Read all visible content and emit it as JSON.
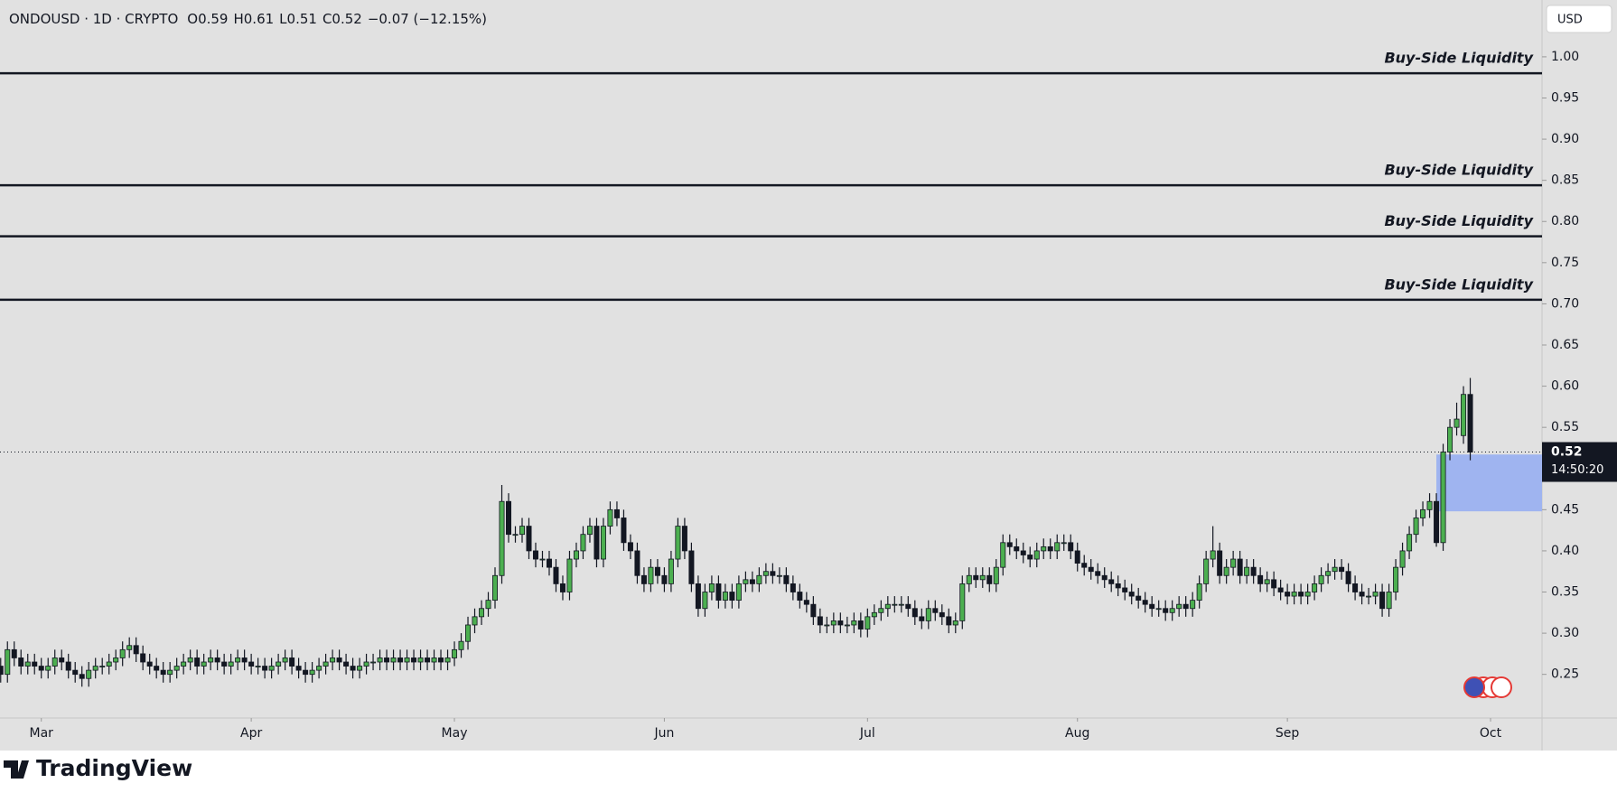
{
  "chart_data": {
    "type": "candlestick",
    "title": "ONDOUSD · 1D · CRYPTO",
    "legend_values": [
      "O0.59",
      "H0.61",
      "L0.51",
      "C0.52",
      "−0.07 (−12.15%)"
    ],
    "currency": "USD",
    "up_color": "#4caf50",
    "down_color": "#131722",
    "open": [
      0.26,
      0.25,
      0.28,
      0.27,
      0.26,
      0.265,
      0.26,
      0.255,
      0.26,
      0.27,
      0.265,
      0.255,
      0.25,
      0.245,
      0.255,
      0.26,
      0.26,
      0.265,
      0.27,
      0.28,
      0.285,
      0.275,
      0.265,
      0.26,
      0.255,
      0.25,
      0.255,
      0.26,
      0.265,
      0.27,
      0.26,
      0.265,
      0.27,
      0.265,
      0.26,
      0.265,
      0.27,
      0.265,
      0.26,
      0.26,
      0.255,
      0.26,
      0.265,
      0.27,
      0.26,
      0.255,
      0.25,
      0.255,
      0.26,
      0.265,
      0.27,
      0.265,
      0.26,
      0.255,
      0.26,
      0.265,
      0.265,
      0.27,
      0.265,
      0.27,
      0.265,
      0.27,
      0.265,
      0.27,
      0.265,
      0.27,
      0.265,
      0.27,
      0.28,
      0.29,
      0.31,
      0.32,
      0.33,
      0.34,
      0.37,
      0.46,
      0.42,
      0.42,
      0.43,
      0.4,
      0.39,
      0.39,
      0.38,
      0.36,
      0.35,
      0.39,
      0.4,
      0.42,
      0.43,
      0.39,
      0.43,
      0.45,
      0.44,
      0.41,
      0.4,
      0.37,
      0.36,
      0.38,
      0.37,
      0.36,
      0.39,
      0.43,
      0.4,
      0.36,
      0.33,
      0.35,
      0.36,
      0.34,
      0.35,
      0.34,
      0.36,
      0.365,
      0.36,
      0.37,
      0.375,
      0.37,
      0.37,
      0.36,
      0.35,
      0.34,
      0.335,
      0.32,
      0.31,
      0.31,
      0.315,
      0.31,
      0.31,
      0.315,
      0.305,
      0.32,
      0.325,
      0.33,
      0.335,
      0.335,
      0.335,
      0.33,
      0.32,
      0.315,
      0.33,
      0.325,
      0.32,
      0.31,
      0.315,
      0.36,
      0.37,
      0.365,
      0.37,
      0.36,
      0.38,
      0.41,
      0.405,
      0.4,
      0.395,
      0.39,
      0.4,
      0.405,
      0.4,
      0.41,
      0.41,
      0.4,
      0.385,
      0.38,
      0.375,
      0.37,
      0.365,
      0.36,
      0.355,
      0.35,
      0.345,
      0.34,
      0.335,
      0.33,
      0.33,
      0.325,
      0.33,
      0.335,
      0.33,
      0.34,
      0.36,
      0.39,
      0.4,
      0.37,
      0.38,
      0.39,
      0.37,
      0.38,
      0.37,
      0.36,
      0.365,
      0.355,
      0.35,
      0.345,
      0.35,
      0.345,
      0.35,
      0.36,
      0.37,
      0.375,
      0.38,
      0.375,
      0.36,
      0.35,
      0.345,
      0.345,
      0.35,
      0.33,
      0.35,
      0.38,
      0.4,
      0.42,
      0.44,
      0.45,
      0.46,
      0.41,
      0.52,
      0.55,
      0.54,
      0.59
    ],
    "high": [
      0.27,
      0.29,
      0.29,
      0.28,
      0.275,
      0.275,
      0.27,
      0.27,
      0.28,
      0.28,
      0.275,
      0.265,
      0.26,
      0.265,
      0.27,
      0.27,
      0.275,
      0.28,
      0.29,
      0.295,
      0.295,
      0.285,
      0.275,
      0.27,
      0.265,
      0.265,
      0.27,
      0.275,
      0.28,
      0.28,
      0.275,
      0.28,
      0.28,
      0.275,
      0.275,
      0.28,
      0.28,
      0.275,
      0.27,
      0.27,
      0.27,
      0.275,
      0.28,
      0.28,
      0.27,
      0.265,
      0.265,
      0.27,
      0.275,
      0.28,
      0.28,
      0.275,
      0.27,
      0.27,
      0.275,
      0.275,
      0.28,
      0.28,
      0.28,
      0.28,
      0.28,
      0.28,
      0.28,
      0.28,
      0.28,
      0.28,
      0.28,
      0.29,
      0.3,
      0.32,
      0.33,
      0.34,
      0.35,
      0.38,
      0.48,
      0.47,
      0.43,
      0.44,
      0.44,
      0.41,
      0.4,
      0.4,
      0.39,
      0.37,
      0.4,
      0.41,
      0.43,
      0.44,
      0.44,
      0.44,
      0.46,
      0.46,
      0.45,
      0.42,
      0.41,
      0.38,
      0.39,
      0.39,
      0.38,
      0.4,
      0.44,
      0.44,
      0.41,
      0.37,
      0.36,
      0.37,
      0.37,
      0.36,
      0.36,
      0.37,
      0.375,
      0.375,
      0.38,
      0.385,
      0.385,
      0.38,
      0.38,
      0.37,
      0.36,
      0.35,
      0.345,
      0.33,
      0.32,
      0.325,
      0.325,
      0.32,
      0.325,
      0.325,
      0.33,
      0.335,
      0.34,
      0.345,
      0.345,
      0.345,
      0.345,
      0.34,
      0.33,
      0.34,
      0.34,
      0.335,
      0.33,
      0.325,
      0.37,
      0.38,
      0.38,
      0.38,
      0.38,
      0.39,
      0.42,
      0.42,
      0.415,
      0.41,
      0.405,
      0.41,
      0.415,
      0.415,
      0.42,
      0.42,
      0.42,
      0.41,
      0.395,
      0.39,
      0.385,
      0.38,
      0.375,
      0.37,
      0.365,
      0.36,
      0.355,
      0.35,
      0.345,
      0.34,
      0.34,
      0.34,
      0.345,
      0.345,
      0.35,
      0.37,
      0.4,
      0.43,
      0.41,
      0.39,
      0.4,
      0.4,
      0.39,
      0.39,
      0.38,
      0.375,
      0.375,
      0.365,
      0.36,
      0.36,
      0.36,
      0.36,
      0.37,
      0.38,
      0.385,
      0.39,
      0.39,
      0.385,
      0.37,
      0.36,
      0.355,
      0.36,
      0.36,
      0.36,
      0.39,
      0.41,
      0.43,
      0.45,
      0.46,
      0.47,
      0.47,
      0.53,
      0.56,
      0.58,
      0.6,
      0.61
    ],
    "low": [
      0.24,
      0.24,
      0.26,
      0.25,
      0.25,
      0.25,
      0.245,
      0.245,
      0.25,
      0.255,
      0.245,
      0.24,
      0.235,
      0.235,
      0.245,
      0.25,
      0.25,
      0.255,
      0.26,
      0.27,
      0.265,
      0.255,
      0.25,
      0.245,
      0.24,
      0.24,
      0.245,
      0.25,
      0.255,
      0.25,
      0.25,
      0.255,
      0.255,
      0.25,
      0.25,
      0.255,
      0.255,
      0.25,
      0.25,
      0.245,
      0.245,
      0.25,
      0.255,
      0.25,
      0.245,
      0.24,
      0.24,
      0.245,
      0.25,
      0.255,
      0.255,
      0.25,
      0.245,
      0.245,
      0.25,
      0.255,
      0.255,
      0.255,
      0.255,
      0.255,
      0.255,
      0.255,
      0.255,
      0.255,
      0.255,
      0.255,
      0.255,
      0.26,
      0.27,
      0.28,
      0.3,
      0.31,
      0.32,
      0.33,
      0.36,
      0.41,
      0.41,
      0.41,
      0.39,
      0.38,
      0.38,
      0.37,
      0.35,
      0.34,
      0.34,
      0.38,
      0.39,
      0.41,
      0.38,
      0.38,
      0.42,
      0.43,
      0.4,
      0.39,
      0.36,
      0.35,
      0.35,
      0.36,
      0.35,
      0.35,
      0.38,
      0.39,
      0.35,
      0.32,
      0.32,
      0.34,
      0.33,
      0.33,
      0.33,
      0.33,
      0.35,
      0.35,
      0.35,
      0.36,
      0.36,
      0.36,
      0.35,
      0.34,
      0.33,
      0.325,
      0.31,
      0.3,
      0.3,
      0.3,
      0.3,
      0.3,
      0.3,
      0.295,
      0.295,
      0.31,
      0.315,
      0.32,
      0.325,
      0.325,
      0.32,
      0.31,
      0.305,
      0.305,
      0.315,
      0.31,
      0.3,
      0.3,
      0.305,
      0.35,
      0.355,
      0.355,
      0.35,
      0.35,
      0.37,
      0.395,
      0.39,
      0.385,
      0.38,
      0.38,
      0.39,
      0.39,
      0.39,
      0.4,
      0.39,
      0.375,
      0.37,
      0.365,
      0.36,
      0.355,
      0.35,
      0.345,
      0.34,
      0.335,
      0.33,
      0.325,
      0.32,
      0.32,
      0.315,
      0.315,
      0.32,
      0.32,
      0.32,
      0.33,
      0.35,
      0.38,
      0.36,
      0.36,
      0.37,
      0.36,
      0.36,
      0.36,
      0.35,
      0.35,
      0.345,
      0.34,
      0.335,
      0.335,
      0.335,
      0.335,
      0.34,
      0.35,
      0.36,
      0.365,
      0.365,
      0.35,
      0.34,
      0.335,
      0.335,
      0.335,
      0.32,
      0.32,
      0.34,
      0.37,
      0.39,
      0.41,
      0.43,
      0.44,
      0.405,
      0.4,
      0.51,
      0.54,
      0.53,
      0.51
    ],
    "close": [
      0.25,
      0.28,
      0.27,
      0.26,
      0.265,
      0.26,
      0.255,
      0.26,
      0.27,
      0.265,
      0.255,
      0.25,
      0.245,
      0.255,
      0.26,
      0.26,
      0.265,
      0.27,
      0.28,
      0.285,
      0.275,
      0.265,
      0.26,
      0.255,
      0.25,
      0.255,
      0.26,
      0.265,
      0.27,
      0.26,
      0.265,
      0.27,
      0.265,
      0.26,
      0.265,
      0.27,
      0.265,
      0.26,
      0.26,
      0.255,
      0.26,
      0.265,
      0.27,
      0.26,
      0.255,
      0.25,
      0.255,
      0.26,
      0.265,
      0.27,
      0.265,
      0.26,
      0.255,
      0.26,
      0.265,
      0.265,
      0.27,
      0.265,
      0.27,
      0.265,
      0.27,
      0.265,
      0.27,
      0.265,
      0.27,
      0.265,
      0.27,
      0.28,
      0.29,
      0.31,
      0.32,
      0.33,
      0.34,
      0.37,
      0.46,
      0.42,
      0.42,
      0.43,
      0.4,
      0.39,
      0.39,
      0.38,
      0.36,
      0.35,
      0.39,
      0.4,
      0.42,
      0.43,
      0.39,
      0.43,
      0.45,
      0.44,
      0.41,
      0.4,
      0.37,
      0.36,
      0.38,
      0.37,
      0.36,
      0.39,
      0.43,
      0.4,
      0.36,
      0.33,
      0.35,
      0.36,
      0.34,
      0.35,
      0.34,
      0.36,
      0.365,
      0.36,
      0.37,
      0.375,
      0.37,
      0.37,
      0.36,
      0.35,
      0.34,
      0.335,
      0.32,
      0.31,
      0.31,
      0.315,
      0.31,
      0.31,
      0.315,
      0.305,
      0.32,
      0.325,
      0.33,
      0.335,
      0.335,
      0.335,
      0.33,
      0.32,
      0.315,
      0.33,
      0.325,
      0.32,
      0.31,
      0.315,
      0.36,
      0.37,
      0.365,
      0.37,
      0.36,
      0.38,
      0.41,
      0.405,
      0.4,
      0.395,
      0.39,
      0.4,
      0.405,
      0.4,
      0.41,
      0.41,
      0.4,
      0.385,
      0.38,
      0.375,
      0.37,
      0.365,
      0.36,
      0.355,
      0.35,
      0.345,
      0.34,
      0.335,
      0.33,
      0.33,
      0.325,
      0.33,
      0.335,
      0.33,
      0.34,
      0.36,
      0.39,
      0.4,
      0.37,
      0.38,
      0.39,
      0.37,
      0.38,
      0.37,
      0.36,
      0.365,
      0.355,
      0.35,
      0.345,
      0.35,
      0.345,
      0.35,
      0.36,
      0.37,
      0.375,
      0.38,
      0.375,
      0.36,
      0.35,
      0.345,
      0.345,
      0.35,
      0.33,
      0.35,
      0.38,
      0.4,
      0.42,
      0.44,
      0.45,
      0.46,
      0.41,
      0.52,
      0.55,
      0.56,
      0.59,
      0.52
    ],
    "xlim": [
      -0.1,
      227.6
    ],
    "xticks": [
      {
        "value": 6,
        "label": "Mar"
      },
      {
        "value": 37,
        "label": "Apr"
      },
      {
        "value": 67,
        "label": "May"
      },
      {
        "value": 98,
        "label": "Jun"
      },
      {
        "value": 128,
        "label": "Jul"
      },
      {
        "value": 159,
        "label": "Aug"
      },
      {
        "value": 190,
        "label": "Sep"
      },
      {
        "value": 220,
        "label": "Oct"
      }
    ],
    "ylim": [
      0.197,
      1.069
    ],
    "yticks": [
      0.25,
      {
        "value": 0.3,
        "label": "0.30"
      },
      0.35,
      {
        "value": 0.4,
        "label": "0.40"
      },
      0.45,
      {
        "value": 0.5,
        "label": "0.50"
      },
      0.55,
      {
        "value": 0.6,
        "label": "0.60"
      },
      0.65,
      {
        "value": 0.7,
        "label": "0.70"
      },
      0.75,
      {
        "value": 0.8,
        "label": "0.80"
      },
      0.85,
      {
        "value": 0.9,
        "label": "0.90"
      },
      0.95,
      {
        "value": 1.0,
        "label": "1.00"
      }
    ],
    "levels": [
      {
        "label": "Buy-Side Liquidity",
        "value": 0.98
      },
      {
        "label": "Buy-Side Liquidity",
        "value": 0.844
      },
      {
        "label": "Buy-Side Liquidity",
        "value": 0.782
      },
      {
        "label": "Buy-Side Liquidity",
        "value": 0.705
      }
    ],
    "zone": {
      "start": 212,
      "top": 0.517,
      "bottom": 0.448,
      "color": "#9fb4f0"
    },
    "last_price": 0.52,
    "countdown": "14:50:20"
  },
  "footer": {
    "brand": "TradingView"
  }
}
